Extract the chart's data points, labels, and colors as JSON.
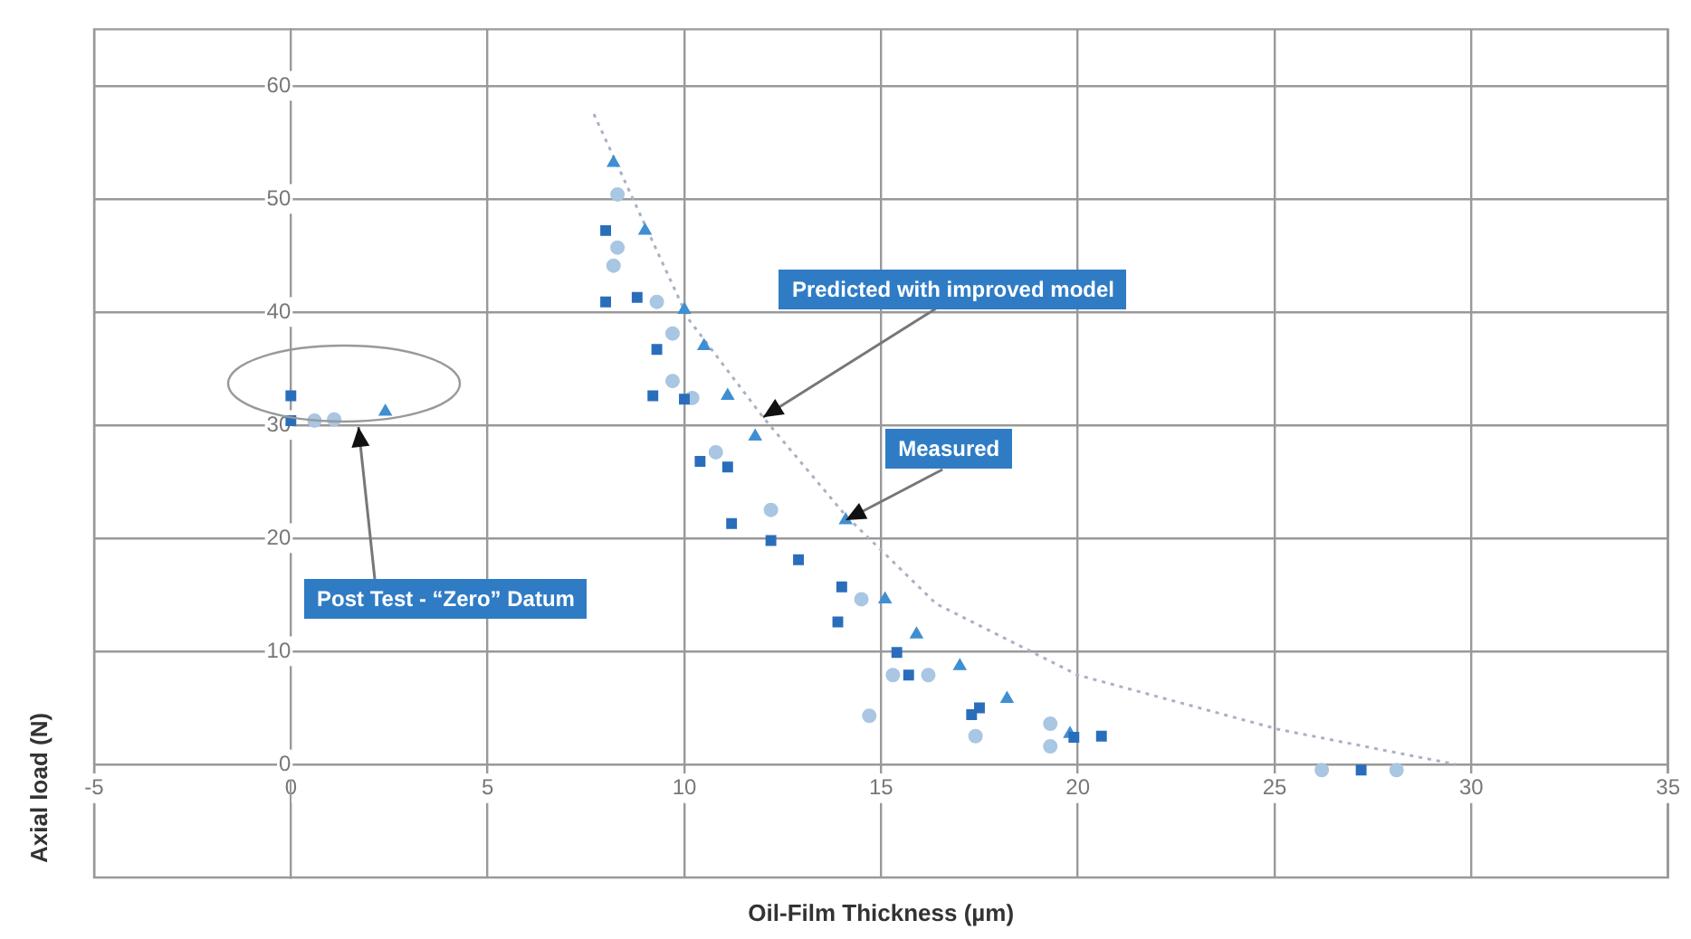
{
  "chart_data": {
    "type": "scatter",
    "xlabel": "Oil-Film Thickness (µm)",
    "ylabel": "Axial load (N)",
    "xlim": [
      -5,
      35
    ],
    "xticks": [
      -5,
      0,
      5,
      10,
      15,
      20,
      25,
      30,
      35
    ],
    "ylim": [
      -10,
      65
    ],
    "yticks": [
      0,
      10,
      20,
      30,
      40,
      50,
      60
    ],
    "grid": true,
    "legend": false,
    "annotations": [
      {
        "text": "Predicted with improved model",
        "x": 12,
        "y": 30.7
      },
      {
        "text": "Measured",
        "x": 14.1,
        "y": 21.6
      },
      "Post Test - “Zero” Datum"
    ],
    "series": [
      {
        "color": "#2a6ebb",
        "marker": "square",
        "x": [
          0,
          0,
          8,
          8,
          8.8,
          9.3,
          9.2,
          10,
          10.4,
          11.1,
          11.2,
          12.2,
          12.9,
          14,
          13.9,
          15.4,
          15.7,
          17.3,
          17.5,
          19.9,
          20.6,
          27.2
        ],
        "values": [
          32.6,
          30.4,
          47.2,
          40.9,
          41.3,
          36.7,
          32.6,
          32.3,
          26.8,
          26.3,
          21.3,
          19.8,
          18.1,
          15.7,
          12.6,
          9.9,
          7.9,
          4.4,
          5,
          2.4,
          2.5,
          -0.5
        ]
      },
      {
        "color": "#3f8fd2",
        "marker": "triangle",
        "x": [
          2.4,
          8.2,
          9,
          10,
          10.5,
          11.1,
          11.8,
          14.1,
          15.1,
          15.9,
          17,
          18.2,
          19.8
        ],
        "values": [
          31.2,
          53.2,
          47.2,
          40.2,
          37,
          32.6,
          29,
          21.6,
          14.6,
          11.5,
          8.7,
          5.8,
          2.7
        ]
      },
      {
        "color": "#a9c6e3",
        "marker": "circle",
        "x": [
          0.6,
          1.1,
          8.3,
          8.3,
          8.2,
          9.3,
          9.7,
          9.7,
          10.2,
          10.8,
          12.2,
          14.5,
          15.3,
          16.2,
          17.4,
          19.3,
          19.3,
          26.2,
          28.1,
          14.7
        ],
        "values": [
          30.4,
          30.5,
          50.4,
          45.7,
          44.1,
          40.9,
          38.1,
          33.9,
          32.4,
          27.6,
          22.5,
          14.6,
          7.9,
          7.9,
          2.5,
          3.6,
          1.6,
          -0.5,
          -0.5,
          4.3
        ]
      },
      {
        "type": "line",
        "color": "#a8b2c4",
        "marker": "none",
        "line_style": "dotted",
        "x": [
          7.7,
          10.1,
          12,
          14.1,
          16.4,
          20,
          25.1,
          29.6
        ],
        "values": [
          57.5,
          39.4,
          30.7,
          22,
          14.2,
          7.9,
          3.1,
          0
        ]
      }
    ]
  }
}
